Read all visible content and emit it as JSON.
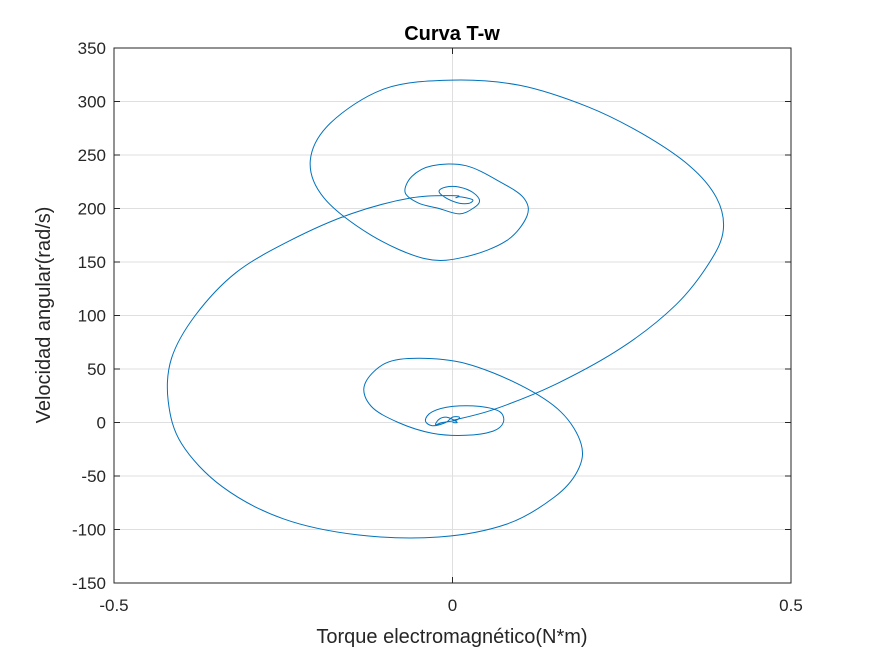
{
  "chart_data": {
    "type": "line",
    "title": "Curva T-w",
    "xlabel": "Torque electromagnético(N*m)",
    "ylabel": "Velocidad angular(rad/s)",
    "xlim": [
      -0.5,
      0.5
    ],
    "ylim": [
      -150,
      350
    ],
    "xticks": [
      -0.5,
      0,
      0.5
    ],
    "xtick_labels": [
      "-0.5",
      "0",
      "0.5"
    ],
    "yticks": [
      -150,
      -100,
      -50,
      0,
      50,
      100,
      150,
      200,
      250,
      300,
      350
    ],
    "ytick_labels": [
      "-150",
      "-100",
      "-50",
      "0",
      "50",
      "100",
      "150",
      "200",
      "250",
      "300",
      "350"
    ],
    "grid": true,
    "colors": {
      "line": "#0072BD",
      "grid": "#dfdfdf",
      "axis": "#262626"
    },
    "series": [
      {
        "x": [
          0.0,
          0.06,
          0.15,
          0.25,
          0.33,
          0.38,
          0.4,
          0.39,
          0.35,
          0.28,
          0.2,
          0.1,
          0.0,
          -0.1,
          -0.18,
          -0.21,
          -0.19,
          -0.12,
          -0.04,
          0.02,
          0.08,
          0.11,
          0.105,
          0.07,
          0.02,
          -0.03,
          -0.06,
          -0.07,
          -0.05,
          -0.02,
          0.01,
          0.03,
          0.04,
          0.03,
          0.01,
          -0.01,
          -0.02,
          -0.01,
          0.01,
          0.025,
          0.03,
          0.02,
          0.01,
          0.005,
          0.005,
          -0.06,
          -0.15,
          -0.24,
          -0.32,
          -0.38,
          -0.415,
          -0.42,
          -0.4,
          -0.34,
          -0.25,
          -0.14,
          -0.02,
          0.08,
          0.15,
          0.185,
          0.19,
          0.16,
          0.1,
          0.02,
          -0.05,
          -0.1,
          -0.13,
          -0.12,
          -0.08,
          -0.03,
          0.02,
          0.06,
          0.075,
          0.07,
          0.04,
          0.0,
          -0.03,
          -0.04,
          -0.03,
          -0.01,
          0.0,
          0.01,
          0.005,
          -0.015,
          -0.025,
          -0.02,
          -0.01,
          0.0,
          0.007,
          0.0
        ],
        "y": [
          2,
          12,
          35,
          70,
          110,
          150,
          180,
          210,
          240,
          270,
          295,
          315,
          320,
          312,
          280,
          245,
          210,
          175,
          153,
          155,
          170,
          193,
          210,
          225,
          240,
          240,
          230,
          215,
          205,
          200,
          195,
          200,
          207,
          215,
          220,
          220,
          216,
          210,
          205,
          205,
          208,
          210,
          211,
          210,
          212,
          210,
          195,
          170,
          140,
          100,
          60,
          20,
          -20,
          -60,
          -90,
          -105,
          -107,
          -95,
          -70,
          -45,
          -20,
          10,
          35,
          55,
          60,
          55,
          35,
          15,
          0,
          -10,
          -12,
          -8,
          0,
          10,
          15,
          15,
          10,
          2,
          -3,
          0,
          5,
          5,
          2,
          0,
          -2,
          3,
          5,
          3,
          0,
          0
        ]
      }
    ]
  }
}
